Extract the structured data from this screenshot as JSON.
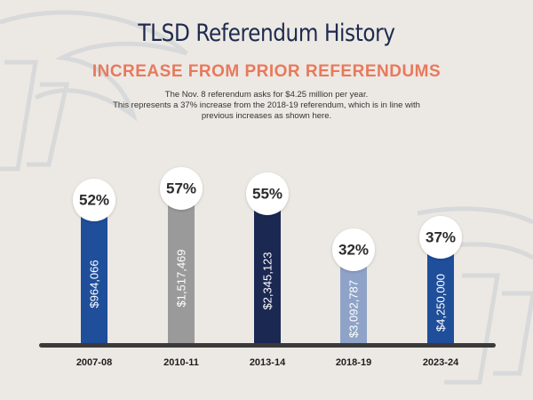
{
  "title": "TLSD Referendum History",
  "subtitle": "INCREASE FROM PRIOR REFERENDUMS",
  "description": [
    "The Nov. 8 referendum asks for $4.25 million per year.",
    "This represents a 37% increase from the 2018-19 referendum, which is in line with",
    "previous increases as shown here."
  ],
  "colors": {
    "title": "#1e2a4d",
    "subtitle": "#e8795c",
    "background": "#ece9e4",
    "baseline": "#3a3a3a"
  },
  "chart_data": {
    "type": "bar",
    "categories": [
      "2007-08",
      "2010-11",
      "2013-14",
      "2018-19",
      "2023-24"
    ],
    "values": [
      964066,
      1517469,
      2345123,
      3092787,
      4250000
    ],
    "value_labels": [
      "$964,066",
      "$1,517,469",
      "$2,345,123",
      "$3,092,787",
      "$4,250,000"
    ],
    "percent_labels": [
      "52%",
      "57%",
      "55%",
      "32%",
      "37%"
    ],
    "bar_colors": [
      "#1f4e9a",
      "#9a9a9a",
      "#1b2852",
      "#8fa3c8",
      "#1f4e9a"
    ],
    "title": "",
    "xlabel": "",
    "ylabel": "",
    "grid": false,
    "legend": "none"
  }
}
